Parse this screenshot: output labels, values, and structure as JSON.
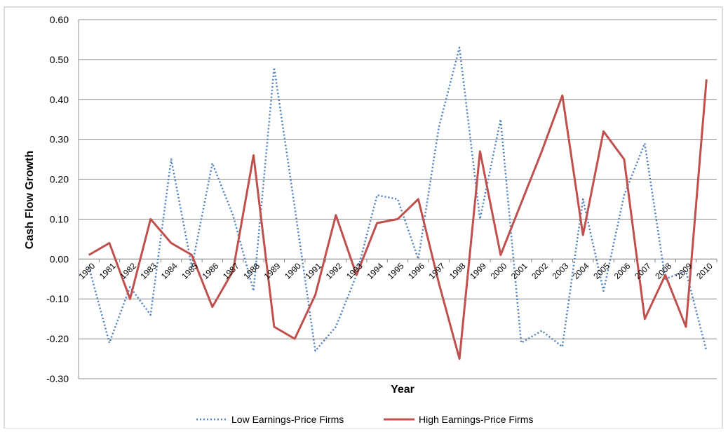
{
  "chart_data": {
    "type": "line",
    "title": "",
    "xlabel": "Year",
    "ylabel": "Cash Flow Growth",
    "ylim": [
      -0.3,
      0.6
    ],
    "yticks": [
      "0.60",
      "0.50",
      "0.40",
      "0.30",
      "0.20",
      "0.10",
      "0.00",
      "-0.10",
      "-0.20",
      "-0.30"
    ],
    "ytick_values": [
      0.6,
      0.5,
      0.4,
      0.3,
      0.2,
      0.1,
      0.0,
      -0.1,
      -0.2,
      -0.3
    ],
    "categories": [
      "1980",
      "1981",
      "1982",
      "1983",
      "1984",
      "1985",
      "1986",
      "1987",
      "1988",
      "1989",
      "1990",
      "1991",
      "1992",
      "1993",
      "1994",
      "1995",
      "1996",
      "1997",
      "1998",
      "1999",
      "2000",
      "2001",
      "2002",
      "2003",
      "2004",
      "2005",
      "2006",
      "2007",
      "2008",
      "2009",
      "2010"
    ],
    "grid": true,
    "legend_position": "bottom",
    "series": [
      {
        "name": "Low Earnings-Price Firms",
        "color": "#4F81BD",
        "style": "dotted",
        "values": [
          -0.02,
          -0.21,
          -0.07,
          -0.14,
          0.25,
          -0.02,
          0.24,
          0.11,
          -0.08,
          0.48,
          0.13,
          -0.23,
          -0.17,
          -0.04,
          0.16,
          0.15,
          0.0,
          0.33,
          0.53,
          0.1,
          0.35,
          -0.21,
          -0.18,
          -0.22,
          0.15,
          -0.08,
          0.16,
          0.29,
          -0.05,
          -0.03,
          -0.23
        ]
      },
      {
        "name": "High Earnings-Price Firms",
        "color": "#C0504D",
        "style": "solid",
        "values": [
          0.01,
          0.04,
          -0.1,
          0.1,
          0.04,
          0.01,
          -0.12,
          -0.03,
          0.26,
          -0.17,
          -0.2,
          -0.09,
          0.11,
          -0.04,
          0.09,
          0.1,
          0.15,
          -0.06,
          -0.25,
          0.27,
          0.01,
          0.14,
          0.27,
          0.41,
          0.06,
          0.32,
          0.25,
          -0.15,
          -0.04,
          -0.17,
          0.45
        ]
      }
    ]
  }
}
